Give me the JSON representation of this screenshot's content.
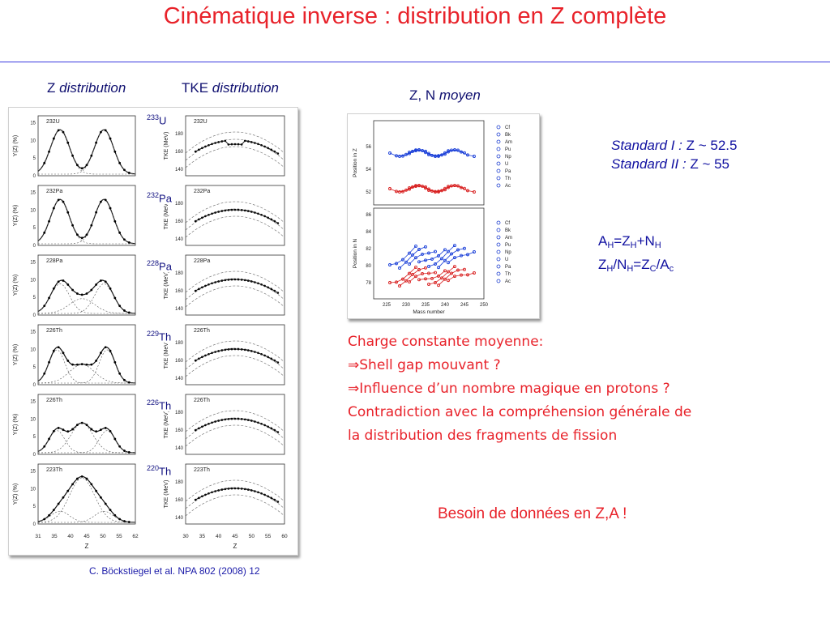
{
  "slide": {
    "title": "Cinématique inverse : distribution en Z complète",
    "col_headers": {
      "z_dist": {
        "main": "Z ",
        "italic": "distribution"
      },
      "tke_dist": {
        "main": "TKE ",
        "italic": "distribution"
      },
      "zn_moyen": {
        "main": "Z, N ",
        "italic": "moyen"
      }
    },
    "nuclei": [
      {
        "mass": "233",
        "sym": "U"
      },
      {
        "mass": "232",
        "sym": "Pa"
      },
      {
        "mass": "228",
        "sym": "Pa"
      },
      {
        "mass": "229",
        "sym": "Th"
      },
      {
        "mass": "226",
        "sym": "Th"
      },
      {
        "mass": "220",
        "sym": "Th"
      }
    ],
    "standards": [
      {
        "label": "Standard I :",
        "value": " Z ~ 52.5"
      },
      {
        "label": "Standard II :",
        "value": " Z ~ 55"
      }
    ],
    "equations": {
      "line1": {
        "A": "A",
        "H1": "H",
        "eq": "=Z",
        "H2": "H",
        "plus": "+N",
        "H3": "H"
      },
      "line2": {
        "Z": "Z",
        "H1": "H",
        "slash": "/N",
        "H2": "H",
        "eq": "=Z",
        "C1": "C",
        "slash2": "/A",
        "c2": "c"
      }
    },
    "remarks": [
      "Charge constante moyenne:",
      "Shell gap mouvant ?",
      "Influence d’un nombre magique en protons ?",
      "Contradiction avec la compréhension générale de",
      "la distribution des fragments de fission"
    ],
    "arrow": "⇒",
    "conclusion": "Besoin de données en Z,A !",
    "citation": "C. Böckstiegel et al. NPA 802 (2008) 12"
  },
  "figure_left": {
    "z_axis": {
      "label": "Z",
      "ticks": [
        "31",
        "35",
        "40",
        "45",
        "50",
        "55",
        "62"
      ]
    },
    "tke_axis": {
      "label": "Z",
      "ticks": [
        "30",
        "35",
        "40",
        "45",
        "50",
        "55",
        "60"
      ]
    },
    "y_label": "Y(Z) (%)",
    "tke_label": "TKE (MeV)",
    "y_ticks": [
      "0",
      "5",
      "10",
      "15"
    ],
    "tke_ticks": [
      "140",
      "160",
      "180"
    ],
    "panel_labels": [
      "232U",
      "232Pa",
      "228Pa",
      "226Th",
      "226Th",
      "223Th"
    ]
  },
  "figure_right": {
    "xlabel": "Mass number",
    "x_ticks": [
      "225",
      "230",
      "235",
      "240",
      "245",
      "250"
    ],
    "top_ylabel": "Position in Z",
    "top_y_ticks": [
      "56",
      "54",
      "52"
    ],
    "bottom_ylabel": "Position in N",
    "bottom_y_ticks": [
      "86",
      "84",
      "82",
      "80",
      "78"
    ],
    "legend": [
      "Cf",
      "Bk",
      "Am",
      "Pu",
      "Np",
      "U",
      "Pa",
      "Th",
      "Ac"
    ]
  },
  "colors": {
    "title": "#e8222a",
    "rule": "#3a3ae0",
    "blue_text": "#1010a0",
    "red_text": "#e8222a"
  }
}
